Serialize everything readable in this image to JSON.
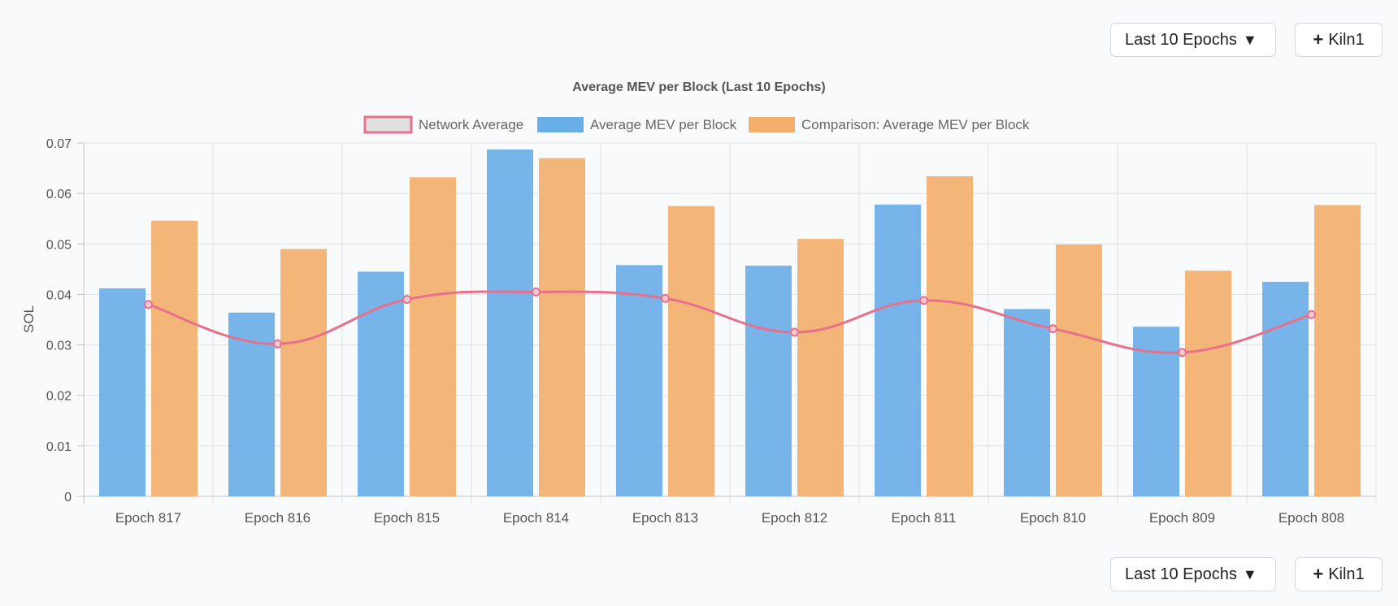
{
  "controls": {
    "range_label": "Last 10 Epochs",
    "range_caret": "▼",
    "add_plus": "+",
    "add_label": "Kiln1"
  },
  "chart_data": {
    "type": "bar",
    "title": "Average MEV per Block (Last 10 Epochs)",
    "xlabel": "",
    "ylabel": "SOL",
    "ylim": [
      0,
      0.07
    ],
    "yticks": [
      0,
      0.01,
      0.02,
      0.03,
      0.04,
      0.05,
      0.06,
      0.07
    ],
    "ytick_labels": [
      "0",
      "0.01",
      "0.02",
      "0.03",
      "0.04",
      "0.05",
      "0.06",
      "0.07"
    ],
    "grid": true,
    "legend_position": "top",
    "categories": [
      "Epoch 817",
      "Epoch 816",
      "Epoch 815",
      "Epoch 814",
      "Epoch 813",
      "Epoch 812",
      "Epoch 811",
      "Epoch 810",
      "Epoch 809",
      "Epoch 808"
    ],
    "series": [
      {
        "name": "Network Average",
        "type": "line",
        "color": "#e8708a",
        "values": [
          0.038,
          0.0302,
          0.039,
          0.0405,
          0.0392,
          0.0325,
          0.0388,
          0.0332,
          0.0285,
          0.036
        ]
      },
      {
        "name": "Average MEV per Block",
        "type": "bar",
        "color": "#6aaee8",
        "values": [
          0.0412,
          0.0364,
          0.0445,
          0.0687,
          0.0458,
          0.0457,
          0.0578,
          0.0371,
          0.0336,
          0.0425
        ]
      },
      {
        "name": "Comparison: Average MEV per Block",
        "type": "bar",
        "color": "#f3b06c",
        "values": [
          0.0546,
          0.049,
          0.0632,
          0.067,
          0.0575,
          0.051,
          0.0634,
          0.0499,
          0.0447,
          0.0577
        ]
      }
    ]
  }
}
